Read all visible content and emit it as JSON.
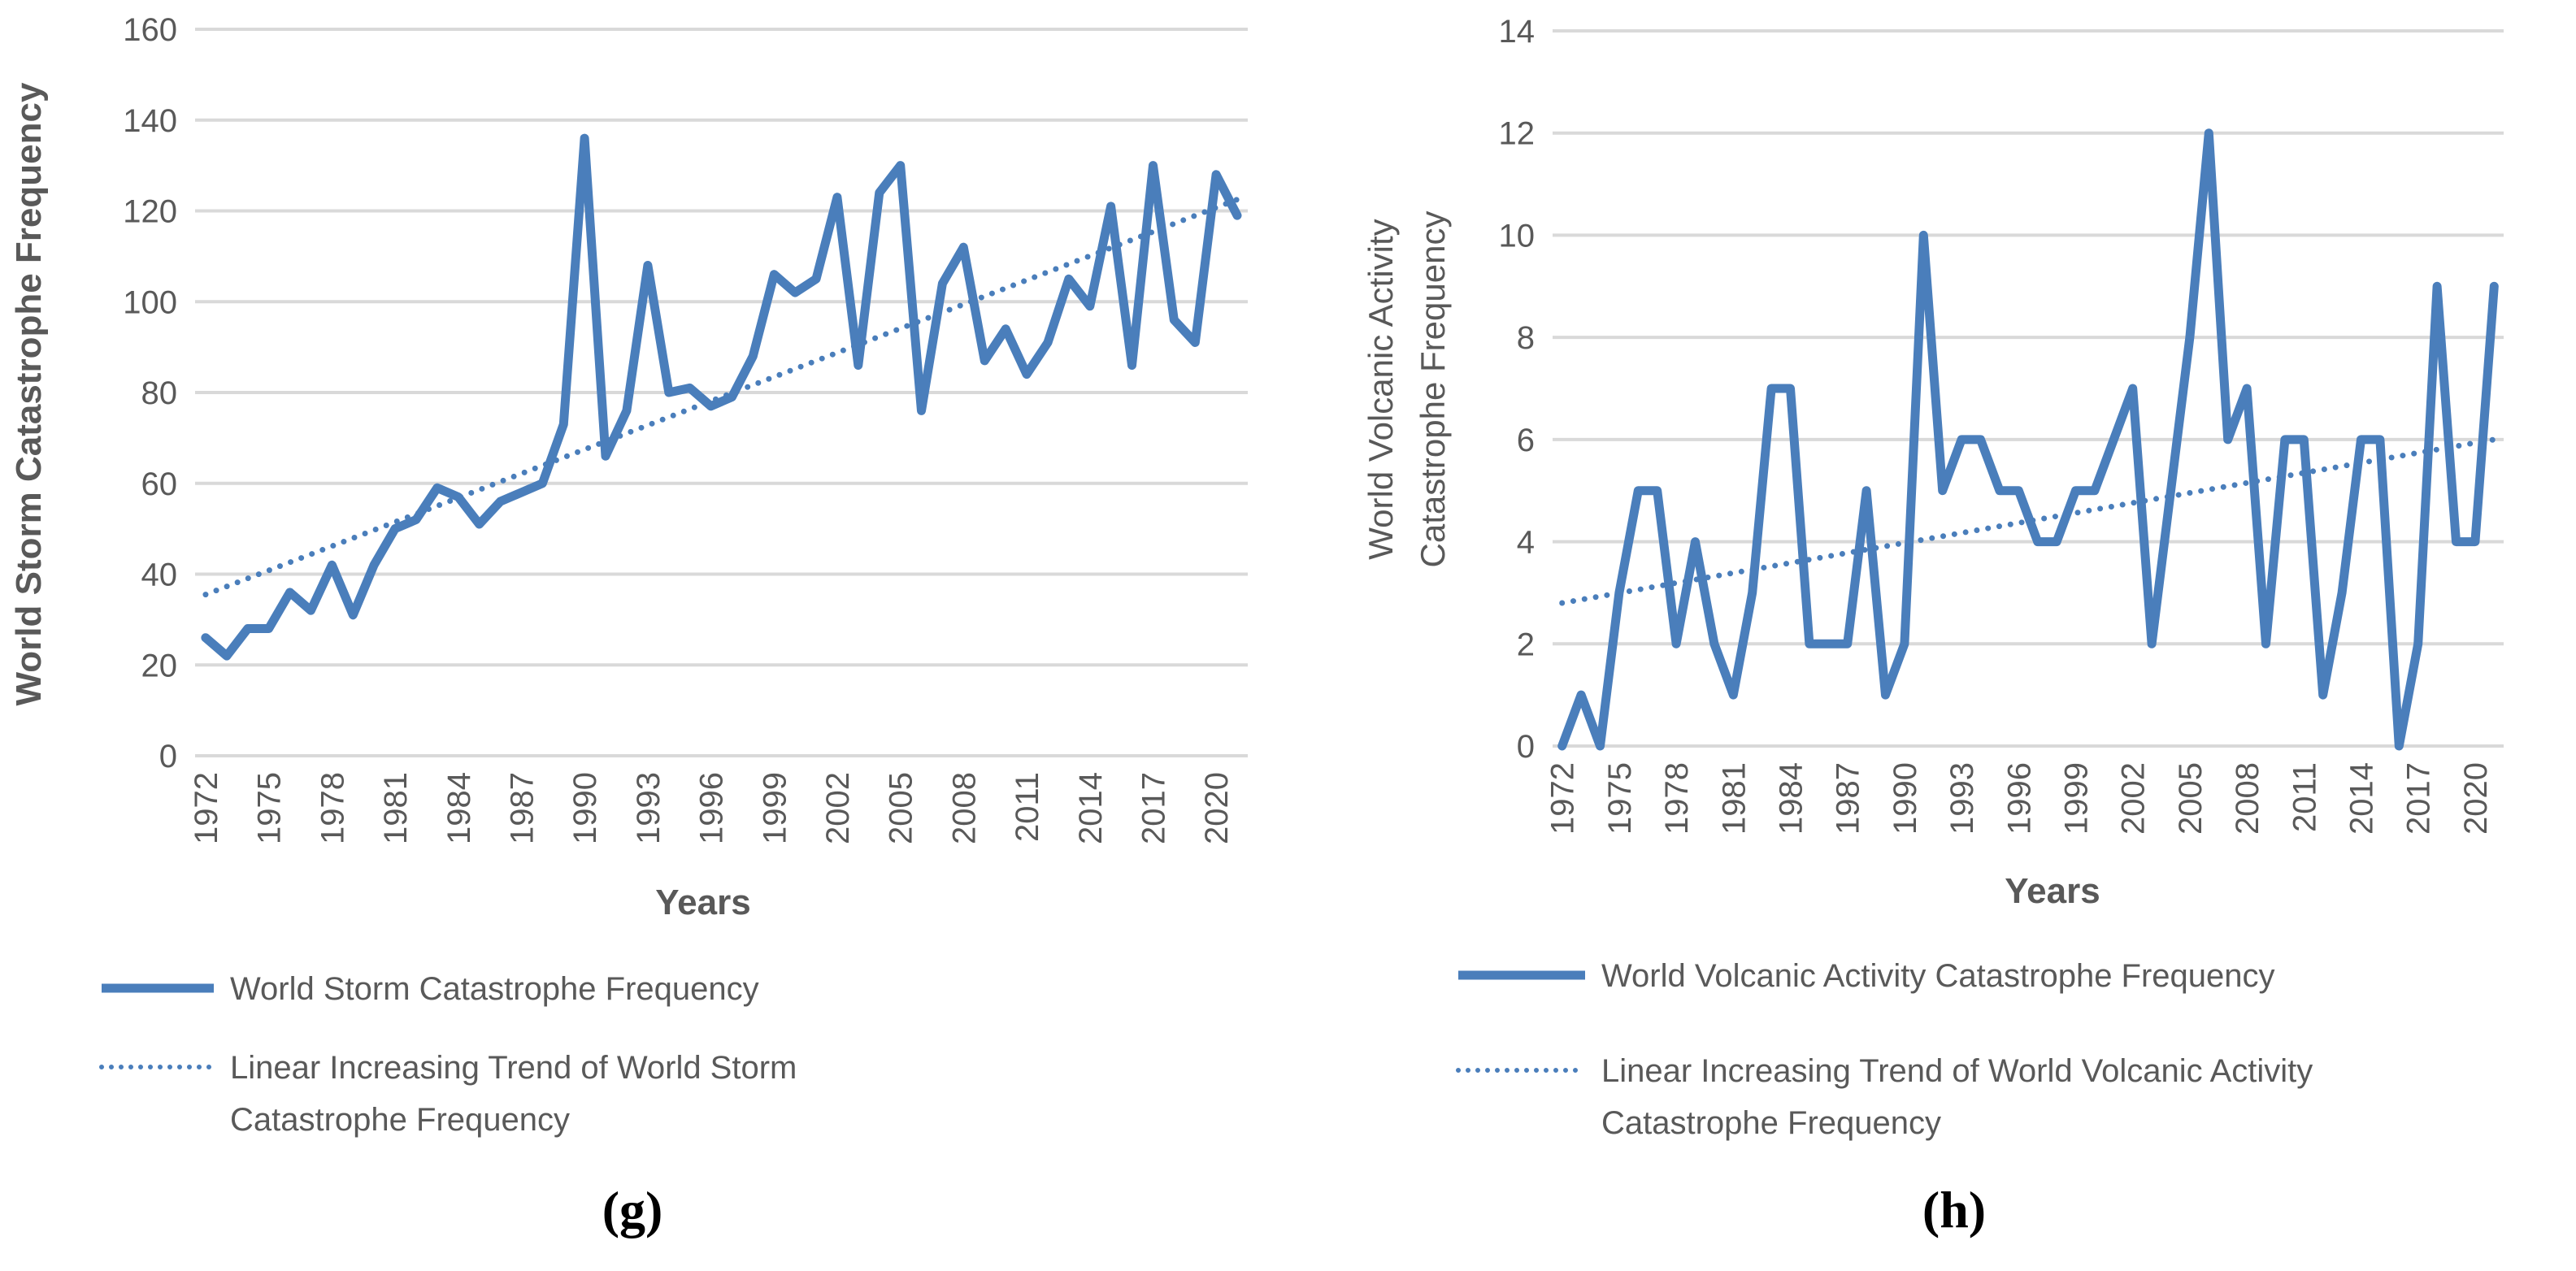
{
  "chart_data": [
    {
      "type": "line",
      "panel_label": "(g)",
      "xlabel": "Years",
      "ylabel": "World Storm Catastrophe Frequency",
      "ylim": [
        0,
        160
      ],
      "yticks": [
        0,
        20,
        40,
        60,
        80,
        100,
        120,
        140,
        160
      ],
      "xtick_labels": [
        "1972",
        "1975",
        "1978",
        "1981",
        "1984",
        "1987",
        "1990",
        "1993",
        "1996",
        "1999",
        "2002",
        "2005",
        "2008",
        "2011",
        "2014",
        "2017",
        "2020"
      ],
      "x_start": 1972,
      "grid": true,
      "legend_position": "bottom",
      "series": [
        {
          "name": "World Storm Catastrophe Frequency",
          "style": "solid",
          "values": [
            26,
            22,
            28,
            28,
            36,
            32,
            42,
            31,
            42,
            50,
            52,
            59,
            57,
            51,
            56,
            58,
            60,
            73,
            136,
            66,
            76,
            108,
            80,
            81,
            77,
            79,
            88,
            106,
            102,
            105,
            123,
            86,
            124,
            130,
            76,
            104,
            112,
            87,
            94,
            84,
            91,
            105,
            99,
            121,
            86,
            130,
            96,
            91,
            128,
            119
          ]
        },
        {
          "name": "Linear Increasing Trend of World Storm Catastrophe Frequency",
          "name_lines": [
            "Linear Increasing Trend of World Storm",
            "Catastrophe Frequency"
          ],
          "style": "dotted",
          "trend_endpoints": [
            35.5,
            122.5
          ]
        }
      ],
      "color": "#4a7ebb"
    },
    {
      "type": "line",
      "panel_label": "(h)",
      "xlabel": "Years",
      "ylabel": "World Volcanic Activity Catastrophe Frequency",
      "ylabel_lines": [
        "World Volcanic Activity",
        "Catastrophe Frequency"
      ],
      "ylim": [
        0,
        14
      ],
      "yticks": [
        0,
        2,
        4,
        6,
        8,
        10,
        12,
        14
      ],
      "xtick_labels": [
        "1972",
        "1975",
        "1978",
        "1981",
        "1984",
        "1987",
        "1990",
        "1993",
        "1996",
        "1999",
        "2002",
        "2005",
        "2008",
        "2011",
        "2014",
        "2017",
        "2020"
      ],
      "x_start": 1972,
      "grid": true,
      "legend_position": "bottom",
      "series": [
        {
          "name": "World Volcanic Activity Catastrophe Frequency",
          "style": "solid",
          "values": [
            0,
            1,
            0,
            3,
            5,
            5,
            2,
            4,
            2,
            1,
            3,
            7,
            7,
            2,
            2,
            2,
            5,
            1,
            2,
            10,
            5,
            6,
            6,
            5,
            5,
            4,
            4,
            5,
            5,
            6,
            7,
            2,
            5,
            8,
            12,
            6,
            7,
            2,
            6,
            6,
            1,
            3,
            6,
            6,
            0,
            2,
            9,
            4,
            4,
            9
          ]
        },
        {
          "name": "Linear Increasing Trend of World Volcanic Activity Catastrophe Frequency",
          "name_lines": [
            "Linear Increasing Trend of World Volcanic Activity",
            "Catastrophe Frequency"
          ],
          "style": "dotted",
          "trend_endpoints": [
            2.8,
            6.0
          ]
        }
      ],
      "color": "#4a7ebb"
    }
  ]
}
